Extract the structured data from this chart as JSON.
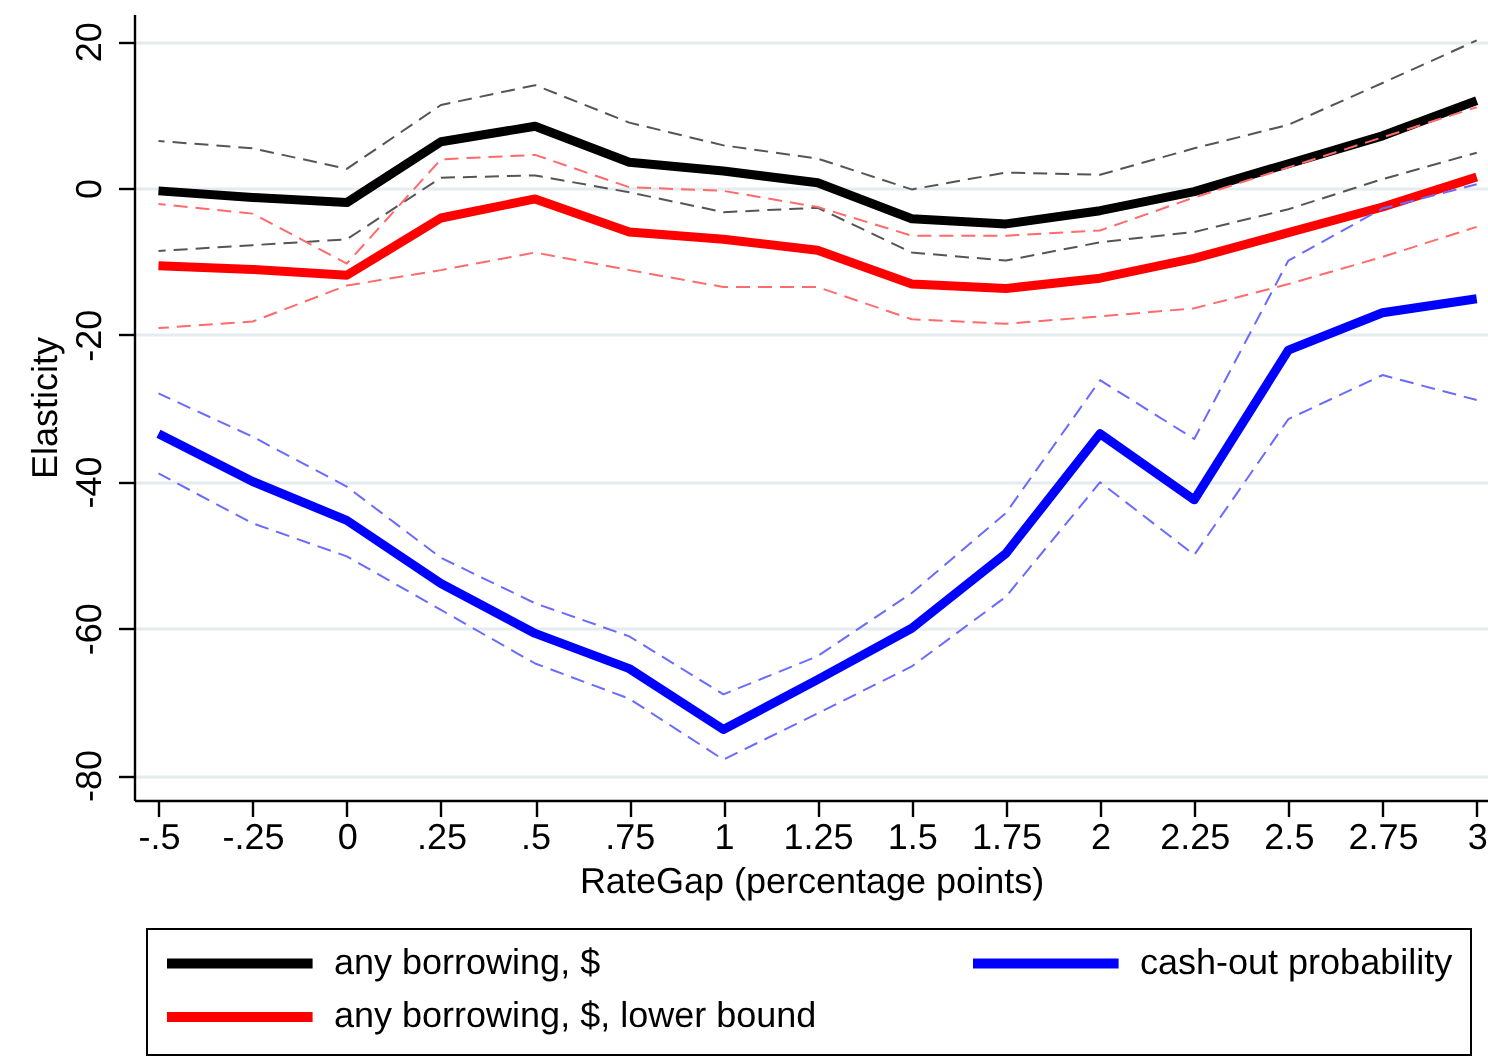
{
  "chart_data": {
    "type": "line",
    "xlabel": "RateGap (percentage points)",
    "ylabel": "Elasticity",
    "x": [
      -0.5,
      -0.25,
      0,
      0.25,
      0.5,
      0.75,
      1,
      1.25,
      1.5,
      1.75,
      2,
      2.25,
      2.5,
      2.75,
      3
    ],
    "series": [
      {
        "name": "any borrowing, $",
        "color": "#000000",
        "values": [
          -0.4,
          -1.3,
          -2.0,
          6.3,
          8.4,
          3.5,
          2.3,
          0.7,
          -4.2,
          -4.9,
          -3.1,
          -0.5,
          3.3,
          7.1,
          11.9
        ]
      },
      {
        "name": "any borrowing, $, lower bound",
        "color": "#ff0000",
        "values": [
          -10.6,
          -11.1,
          -11.9,
          -4.1,
          -1.5,
          -6.0,
          -7.0,
          -8.5,
          -13.1,
          -13.7,
          -12.3,
          -9.6,
          -6.1,
          -2.6,
          1.5
        ]
      },
      {
        "name": "cash-out probability",
        "color": "#0000ff",
        "values": [
          -33.5,
          -40.0,
          -45.3,
          -53.9,
          -60.7,
          -65.5,
          -73.8,
          -67.0,
          -60.0,
          -49.8,
          -33.5,
          -42.5,
          -22.1,
          -17.0,
          -15.1
        ]
      },
      {
        "color": "#555555",
        "line_style": "dashed",
        "values": [
          6.4,
          5.4,
          2.6,
          11.3,
          14.0,
          8.9,
          5.8,
          4.0,
          -0.2,
          2.1,
          1.8,
          5.4,
          8.6,
          14.3,
          20.1
        ]
      },
      {
        "color": "#555555",
        "line_style": "dashed",
        "values": [
          -8.6,
          -7.8,
          -7.0,
          1.4,
          1.7,
          -0.6,
          -3.3,
          -2.7,
          -8.8,
          -9.9,
          -7.4,
          -6.0,
          -2.9,
          1.2,
          4.8
        ]
      },
      {
        "color": "#ff6a6a",
        "line_style": "dashed",
        "values": [
          -2.2,
          -3.5,
          -10.3,
          3.9,
          4.5,
          0.1,
          -0.4,
          -2.6,
          -6.5,
          -6.5,
          -5.8,
          -1.3,
          2.8,
          6.9,
          11.0
        ]
      },
      {
        "color": "#ff6a6a",
        "line_style": "dashed",
        "values": [
          -19.1,
          -18.2,
          -13.3,
          -11.2,
          -8.8,
          -11.2,
          -13.5,
          -13.5,
          -17.9,
          -18.5,
          -17.5,
          -16.4,
          -13.1,
          -9.4,
          -5.3
        ]
      },
      {
        "color": "#6a6aff",
        "line_style": "dashed",
        "values": [
          -28.0,
          -33.9,
          -40.7,
          -50.4,
          -56.6,
          -61.1,
          -69.0,
          -63.8,
          -55.2,
          -44.3,
          -26.2,
          -34.2,
          -9.9,
          -2.8,
          0.5
        ]
      },
      {
        "color": "#6a6aff",
        "line_style": "dashed",
        "values": [
          -38.9,
          -45.7,
          -50.2,
          -57.5,
          -64.8,
          -69.6,
          -77.9,
          -71.6,
          -65.2,
          -55.7,
          -40.1,
          -50.0,
          -31.5,
          -25.5,
          -28.9
        ]
      }
    ],
    "xlim": [
      -0.565,
      3.03
    ],
    "xticks": [
      {
        "value": -0.5,
        "label": "-.5"
      },
      {
        "value": -0.25,
        "label": "-.25"
      },
      0,
      {
        "value": 0.25,
        "label": ".25"
      },
      {
        "value": 0.5,
        "label": ".5"
      },
      {
        "value": 0.75,
        "label": ".75"
      },
      1,
      1.25,
      1.5,
      1.75,
      2,
      2.25,
      2.5,
      2.75,
      3
    ],
    "ylim": [
      -83.4,
      23.7
    ],
    "yticks": [
      -80,
      -60,
      -40,
      -20,
      0,
      20
    ],
    "grid": "y",
    "legend": "bottom"
  }
}
